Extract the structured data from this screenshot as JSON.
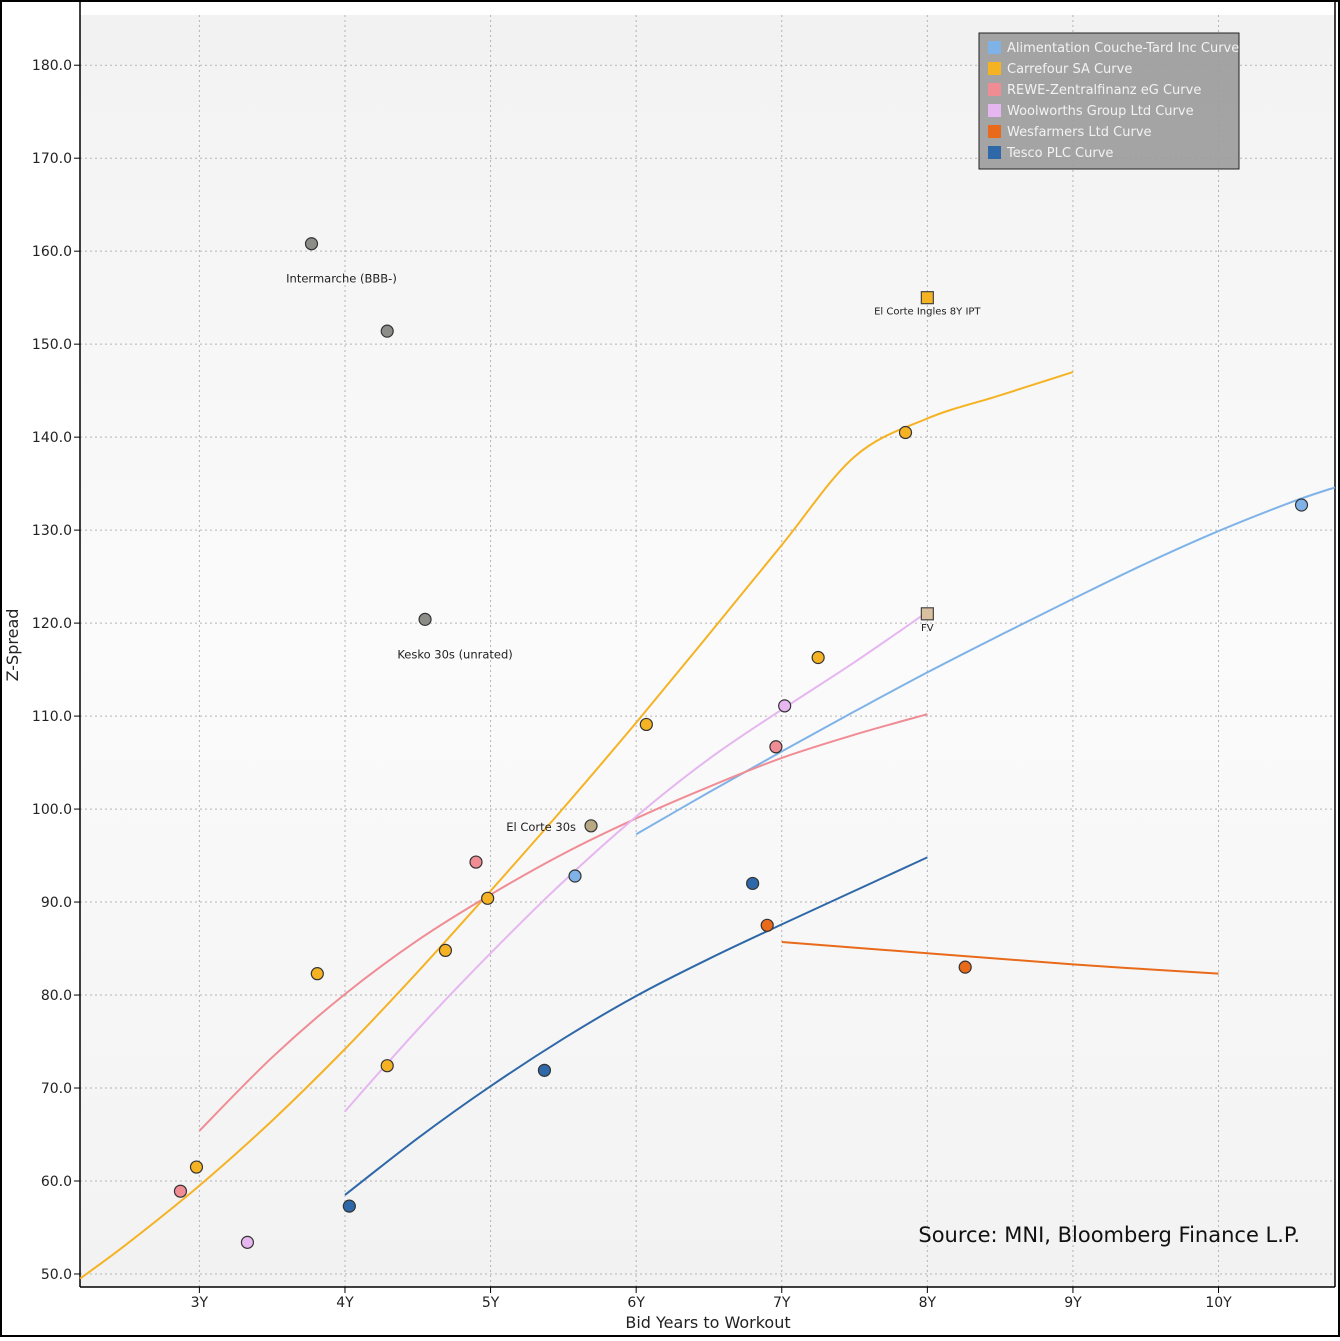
{
  "chart_data": {
    "type": "scatter",
    "title": "",
    "xlabel": "Bid Years to Workout",
    "ylabel": "Z-Spread",
    "xlim": [
      2.18,
      10.8
    ],
    "ylim": [
      48.6,
      185.4
    ],
    "x_ticks": [
      {
        "value": 3,
        "label": "3Y"
      },
      {
        "value": 4,
        "label": "4Y"
      },
      {
        "value": 5,
        "label": "5Y"
      },
      {
        "value": 6,
        "label": "6Y"
      },
      {
        "value": 7,
        "label": "7Y"
      },
      {
        "value": 8,
        "label": "8Y"
      },
      {
        "value": 9,
        "label": "9Y"
      },
      {
        "value": 10,
        "label": "10Y"
      }
    ],
    "y_ticks": [
      {
        "value": 50,
        "label": "50.0"
      },
      {
        "value": 60,
        "label": "60.0"
      },
      {
        "value": 70,
        "label": "70.0"
      },
      {
        "value": 80,
        "label": "80.0"
      },
      {
        "value": 90,
        "label": "90.0"
      },
      {
        "value": 100,
        "label": "100.0"
      },
      {
        "value": 110,
        "label": "110.0"
      },
      {
        "value": 120,
        "label": "120.0"
      },
      {
        "value": 130,
        "label": "130.0"
      },
      {
        "value": 140,
        "label": "140.0"
      },
      {
        "value": 150,
        "label": "150.0"
      },
      {
        "value": 160,
        "label": "160.0"
      },
      {
        "value": 170,
        "label": "170.0"
      },
      {
        "value": 180,
        "label": "180.0"
      }
    ],
    "grid": true,
    "legend_position": "top-right",
    "series": [
      {
        "name": "Alimentation Couche-Tard Inc Curve",
        "color": "#7fb3e8",
        "curve": [
          [
            6.0,
            97.3
          ],
          [
            6.5,
            101.8
          ],
          [
            7.0,
            106.2
          ],
          [
            7.5,
            110.5
          ],
          [
            8.0,
            114.7
          ],
          [
            8.5,
            118.7
          ],
          [
            9.0,
            122.6
          ],
          [
            9.5,
            126.4
          ],
          [
            10.0,
            129.9
          ],
          [
            10.5,
            133.0
          ],
          [
            10.8,
            134.6
          ]
        ],
        "points": [
          [
            5.58,
            92.8
          ],
          [
            10.57,
            132.7
          ]
        ]
      },
      {
        "name": "Carrefour SA Curve",
        "color": "#f5b324",
        "curve": [
          [
            2.18,
            49.5
          ],
          [
            2.5,
            53.2
          ],
          [
            3.0,
            59.5
          ],
          [
            3.5,
            66.5
          ],
          [
            4.0,
            74.2
          ],
          [
            4.5,
            82.5
          ],
          [
            5.0,
            91.2
          ],
          [
            5.5,
            100.1
          ],
          [
            6.0,
            109.3
          ],
          [
            6.5,
            118.8
          ],
          [
            7.0,
            128.4
          ],
          [
            7.5,
            137.9
          ],
          [
            8.0,
            142.0
          ],
          [
            8.5,
            144.5
          ],
          [
            9.0,
            147.0
          ]
        ],
        "points": [
          [
            2.98,
            61.5
          ],
          [
            3.81,
            82.3
          ],
          [
            4.29,
            72.4
          ],
          [
            4.69,
            84.8
          ],
          [
            4.98,
            90.4
          ],
          [
            6.07,
            109.1
          ],
          [
            7.25,
            116.3
          ],
          [
            7.85,
            140.5
          ]
        ]
      },
      {
        "name": "REWE-Zentralfinanz eG Curve",
        "color": "#f08c94",
        "curve": [
          [
            3.0,
            65.4
          ],
          [
            3.5,
            73.3
          ],
          [
            4.0,
            80.1
          ],
          [
            4.5,
            85.9
          ],
          [
            5.0,
            90.8
          ],
          [
            5.5,
            95.2
          ],
          [
            6.0,
            99.0
          ],
          [
            6.5,
            102.4
          ],
          [
            7.0,
            105.5
          ],
          [
            7.5,
            108.0
          ],
          [
            8.0,
            110.2
          ]
        ],
        "points": [
          [
            2.87,
            58.9
          ],
          [
            4.9,
            94.3
          ],
          [
            6.96,
            106.7
          ]
        ]
      },
      {
        "name": "Woolworths Group Ltd Curve",
        "color": "#e6b6f0",
        "curve": [
          [
            4.0,
            67.5
          ],
          [
            4.5,
            76.3
          ],
          [
            5.0,
            84.5
          ],
          [
            5.5,
            92.2
          ],
          [
            6.0,
            99.2
          ],
          [
            6.5,
            105.4
          ],
          [
            7.0,
            110.7
          ],
          [
            7.5,
            115.8
          ],
          [
            8.0,
            121.2
          ]
        ],
        "points": [
          [
            3.33,
            53.4
          ],
          [
            7.02,
            111.1
          ]
        ]
      },
      {
        "name": "Wesfarmers Ltd Curve",
        "color": "#e86a1a",
        "curve": [
          [
            7.0,
            85.7
          ],
          [
            8.0,
            84.5
          ],
          [
            9.0,
            83.3
          ],
          [
            10.0,
            82.3
          ]
        ],
        "points": [
          [
            6.9,
            87.5
          ],
          [
            8.26,
            83.0
          ]
        ]
      },
      {
        "name": "Tesco PLC Curve",
        "color": "#2f68a8",
        "curve": [
          [
            4.0,
            58.5
          ],
          [
            4.5,
            64.6
          ],
          [
            5.0,
            70.2
          ],
          [
            5.5,
            75.3
          ],
          [
            6.0,
            79.9
          ],
          [
            6.5,
            83.9
          ],
          [
            7.0,
            87.6
          ],
          [
            7.5,
            91.2
          ],
          [
            8.0,
            94.8
          ]
        ],
        "points": [
          [
            4.03,
            57.3
          ],
          [
            5.37,
            71.9
          ],
          [
            6.8,
            92.0
          ]
        ]
      }
    ],
    "other_points": [
      {
        "x": 3.77,
        "y": 160.8,
        "color": "#8c8c88",
        "label": "Intermarche (BBB-)"
      },
      {
        "x": 4.29,
        "y": 151.4,
        "color": "#8c8c88",
        "label": ""
      },
      {
        "x": 4.55,
        "y": 120.4,
        "color": "#8c8c88",
        "label": "Kesko 30s (unrated)"
      },
      {
        "x": 5.69,
        "y": 98.2,
        "color": "#b9a884",
        "label": "El Corte 30s"
      }
    ],
    "square_points": [
      {
        "x": 8.0,
        "y": 155.0,
        "color": "#f5b324",
        "label": "El Corte Ingles 8Y IPT"
      },
      {
        "x": 8.0,
        "y": 121.0,
        "color": "#d9c0a0",
        "label": "FV"
      }
    ],
    "source_note": "Source: MNI, Bloomberg Finance L.P."
  }
}
